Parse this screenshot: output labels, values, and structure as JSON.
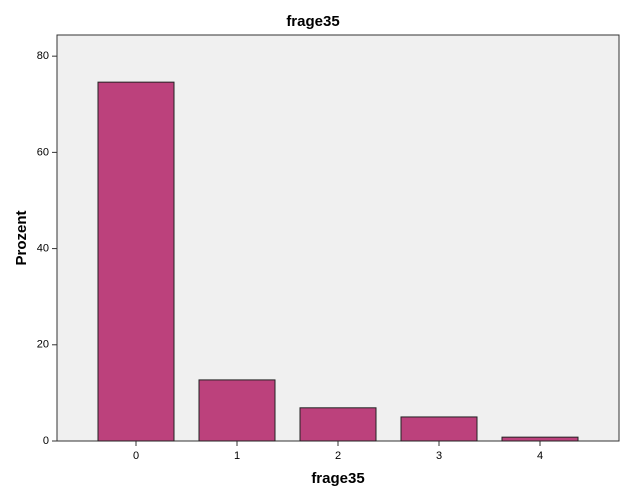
{
  "chart_data": {
    "type": "bar",
    "title": "frage35",
    "x_label": "frage35",
    "y_label": "Prozent",
    "categories": [
      "0",
      "1",
      "2",
      "3",
      "4"
    ],
    "values": [
      74.6,
      12.7,
      6.9,
      5.0,
      0.8
    ],
    "color": "#bc417c",
    "ylim": [
      0,
      84.4
    ],
    "yticks": [
      0,
      20,
      40,
      60,
      80
    ],
    "grid": false
  }
}
